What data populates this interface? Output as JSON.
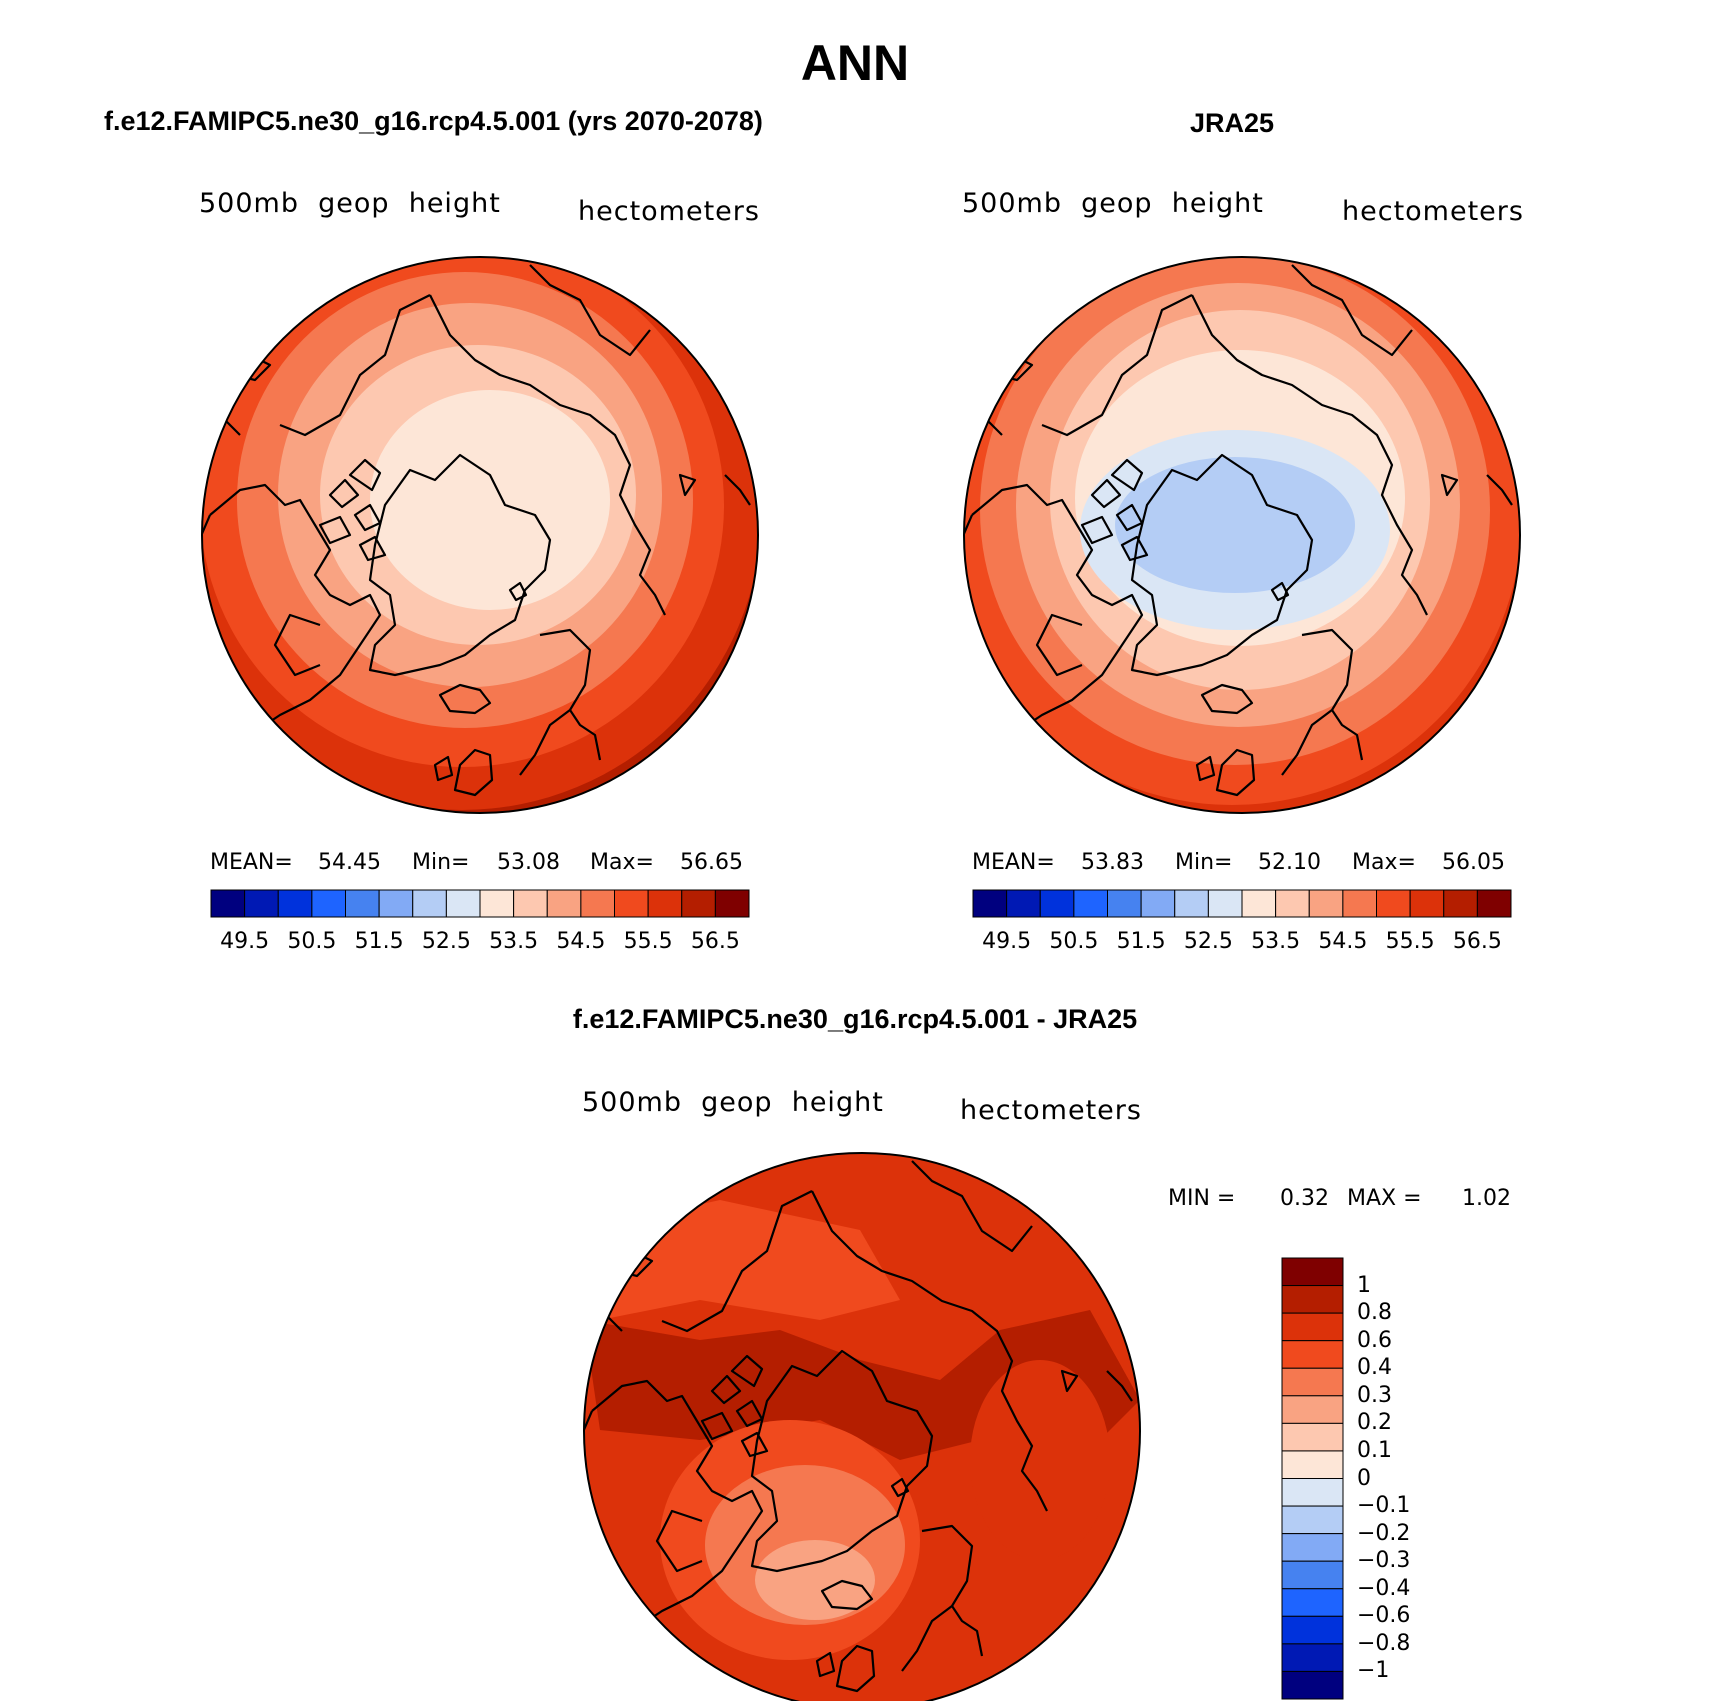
{
  "title": "ANN",
  "panel_left": {
    "title": "f.e12.FAMIPC5.ne30_g16.rcp4.5.001 (yrs 2070-2078)",
    "var_label": "500mb  geop  height",
    "units": "hectometers",
    "stats": {
      "mean_label": "MEAN=",
      "mean": "54.45",
      "min_label": "Min=",
      "min": "53.08",
      "max_label": "Max=",
      "max": "56.65"
    }
  },
  "panel_right": {
    "title": "JRA25",
    "var_label": "500mb  geop  height",
    "units": "hectometers",
    "stats": {
      "mean_label": "MEAN=",
      "mean": "53.83",
      "min_label": "Min=",
      "min": "52.10",
      "max_label": "Max=",
      "max": "56.05"
    }
  },
  "panel_diff": {
    "title": "f.e12.FAMIPC5.ne30_g16.rcp4.5.001 - JRA25",
    "var_label": "500mb  geop  height",
    "units": "hectometers",
    "stats": {
      "min_label": "MIN =",
      "min": "0.32",
      "max_label": "MAX =",
      "max": "1.02"
    }
  },
  "colorbar_abs": {
    "colors": [
      "#00007f",
      "#0019b4",
      "#0032dc",
      "#1e64ff",
      "#4682f0",
      "#82aaf5",
      "#b4cdf5",
      "#dae6f5",
      "#fde6d7",
      "#fdc8b0",
      "#f9a382",
      "#f57850",
      "#f04a1e",
      "#dc320a",
      "#b41e00",
      "#7f0000"
    ],
    "tick_labels": [
      "49.5",
      "50.5",
      "51.5",
      "52.5",
      "53.5",
      "54.5",
      "55.5",
      "56.5"
    ]
  },
  "colorbar_diff": {
    "colors": [
      "#00007f",
      "#0019b4",
      "#0032dc",
      "#1e64ff",
      "#4682f0",
      "#82aaf5",
      "#b4cdf5",
      "#dae6f5",
      "#fde6d7",
      "#fdc8b0",
      "#f9a382",
      "#f57850",
      "#f04a1e",
      "#dc320a",
      "#b41e00",
      "#7f0000"
    ],
    "tick_labels": [
      "1",
      "0.8",
      "0.6",
      "0.4",
      "0.3",
      "0.2",
      "0.1",
      "0",
      "−0.1",
      "−0.2",
      "−0.3",
      "−0.4",
      "−0.6",
      "−0.8",
      "−1"
    ]
  }
}
